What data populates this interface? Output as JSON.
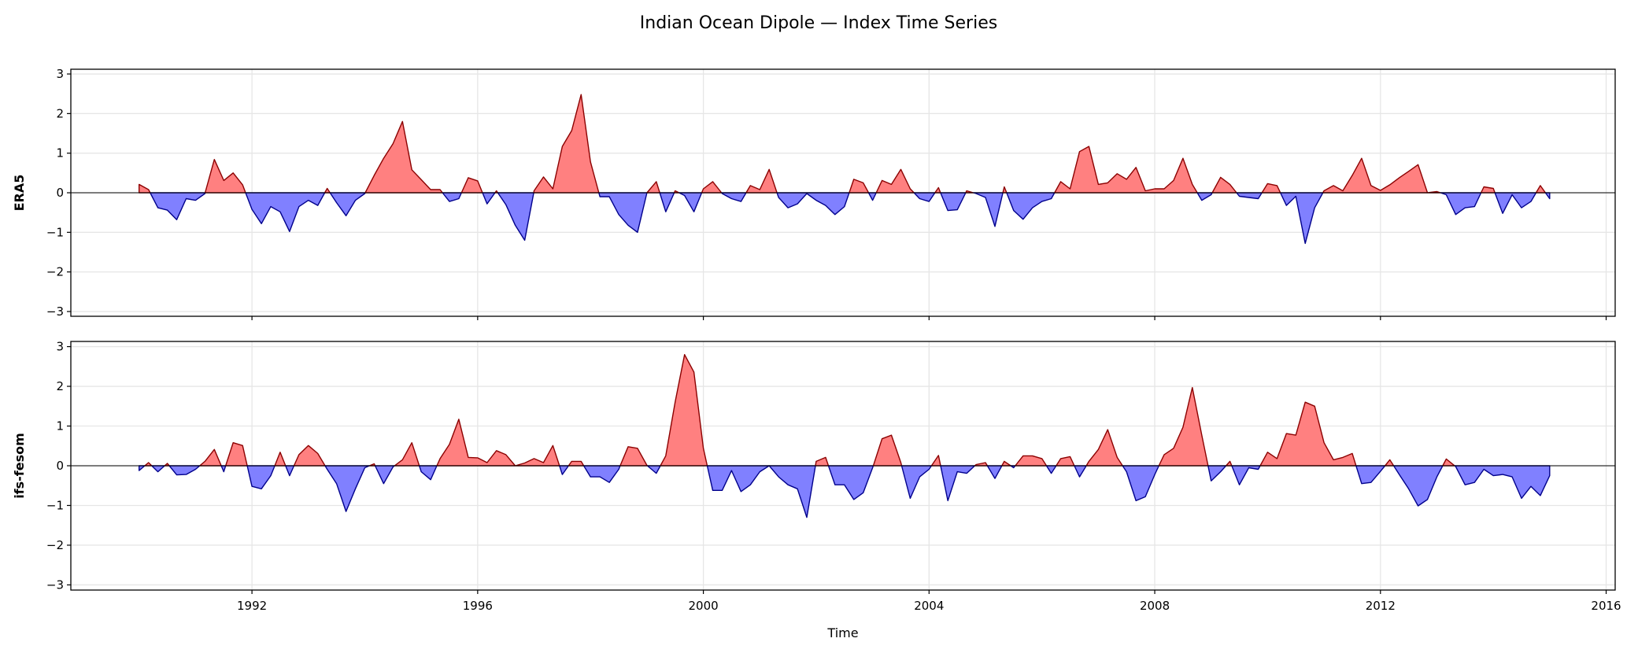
{
  "chart_data": {
    "type": "area",
    "title": "Indian Ocean Dipole — Index Time Series",
    "xlabel": "Time",
    "x_start": "1990-01",
    "x_step_months": 2,
    "xlim": [
      1988.79,
      2016.16
    ],
    "xticks": [
      "1992",
      "1996",
      "2000",
      "2004",
      "2008",
      "2012",
      "2016"
    ],
    "yticks": [
      "−3",
      "−2",
      "−1",
      "0",
      "1",
      "2",
      "3"
    ],
    "grid": true,
    "colors": {
      "positive_fill": "#ff8080",
      "positive_edge": "#8b0000",
      "negative_fill": "#8080ff",
      "negative_edge": "#00008b",
      "zero_line": "#000000"
    },
    "panels": [
      {
        "ylabel": "ERA5",
        "ylim": [
          -3.12,
          3.12
        ],
        "values": [
          0.21,
          0.08,
          -0.38,
          -0.44,
          -0.68,
          -0.15,
          -0.19,
          -0.02,
          0.84,
          0.31,
          0.5,
          0.2,
          -0.42,
          -0.78,
          -0.35,
          -0.48,
          -0.98,
          -0.35,
          -0.19,
          -0.32,
          0.11,
          -0.25,
          -0.58,
          -0.19,
          -0.02,
          0.44,
          0.87,
          1.24,
          1.8,
          0.58,
          0.33,
          0.08,
          0.08,
          -0.22,
          -0.15,
          0.38,
          0.3,
          -0.28,
          0.05,
          -0.3,
          -0.82,
          -1.2,
          0.05,
          0.4,
          0.1,
          1.17,
          1.57,
          2.48,
          0.78,
          -0.1,
          -0.1,
          -0.55,
          -0.82,
          -1.0,
          0.0,
          0.28,
          -0.48,
          0.05,
          -0.07,
          -0.48,
          0.1,
          0.28,
          -0.02,
          -0.15,
          -0.22,
          0.18,
          0.08,
          0.59,
          -0.12,
          -0.38,
          -0.28,
          -0.02,
          -0.19,
          -0.32,
          -0.55,
          -0.35,
          0.34,
          0.25,
          -0.19,
          0.31,
          0.21,
          0.59,
          0.1,
          -0.15,
          -0.22,
          0.13,
          -0.45,
          -0.43,
          0.05,
          -0.02,
          -0.12,
          -0.85,
          0.15,
          -0.45,
          -0.67,
          -0.38,
          -0.22,
          -0.15,
          0.28,
          0.1,
          1.04,
          1.17,
          0.21,
          0.25,
          0.48,
          0.34,
          0.64,
          0.05,
          0.1,
          0.1,
          0.31,
          0.87,
          0.21,
          -0.19,
          -0.05,
          0.39,
          0.21,
          -0.09,
          -0.12,
          -0.15,
          0.23,
          0.18,
          -0.32,
          -0.09,
          -1.28,
          -0.38,
          0.05,
          0.18,
          0.05,
          0.44,
          0.87,
          0.18,
          0.06,
          0.2,
          0.38,
          0.54,
          0.71,
          0.0,
          0.03,
          -0.05,
          -0.55,
          -0.38,
          -0.35,
          0.15,
          0.11,
          -0.52,
          -0.05,
          -0.38,
          -0.22,
          0.18,
          -0.15
        ]
      },
      {
        "ylabel": "ifs-fesom",
        "ylim": [
          -3.13,
          3.13
        ],
        "values": [
          -0.12,
          0.08,
          -0.15,
          0.06,
          -0.23,
          -0.22,
          -0.09,
          0.11,
          0.41,
          -0.15,
          0.58,
          0.51,
          -0.52,
          -0.58,
          -0.25,
          0.34,
          -0.25,
          0.28,
          0.51,
          0.31,
          -0.09,
          -0.45,
          -1.15,
          -0.58,
          -0.05,
          0.05,
          -0.45,
          -0.03,
          0.15,
          0.58,
          -0.15,
          -0.35,
          0.18,
          0.54,
          1.17,
          0.21,
          0.2,
          0.08,
          0.38,
          0.28,
          0.0,
          0.07,
          0.18,
          0.08,
          0.51,
          -0.22,
          0.11,
          0.11,
          -0.28,
          -0.28,
          -0.42,
          -0.09,
          0.48,
          0.44,
          0.01,
          -0.19,
          0.25,
          1.6,
          2.8,
          2.36,
          0.44,
          -0.62,
          -0.62,
          -0.12,
          -0.65,
          -0.48,
          -0.15,
          0.0,
          -0.28,
          -0.48,
          -0.58,
          -1.3,
          0.11,
          0.21,
          -0.48,
          -0.48,
          -0.85,
          -0.68,
          -0.05,
          0.68,
          0.77,
          0.08,
          -0.82,
          -0.28,
          -0.09,
          0.26,
          -0.88,
          -0.15,
          -0.19,
          0.03,
          0.08,
          -0.32,
          0.11,
          -0.05,
          0.25,
          0.25,
          0.18,
          -0.19,
          0.18,
          0.23,
          -0.28,
          0.11,
          0.41,
          0.91,
          0.21,
          -0.15,
          -0.88,
          -0.78,
          -0.22,
          0.28,
          0.44,
          0.97,
          1.97,
          0.77,
          -0.38,
          -0.15,
          0.11,
          -0.48,
          -0.05,
          -0.09,
          0.34,
          0.18,
          0.81,
          0.77,
          1.6,
          1.5,
          0.58,
          0.15,
          0.21,
          0.31,
          -0.45,
          -0.42,
          -0.14,
          0.15,
          -0.22,
          -0.58,
          -1.01,
          -0.85,
          -0.28,
          0.17,
          -0.02,
          -0.48,
          -0.42,
          -0.09,
          -0.25,
          -0.22,
          -0.28,
          -0.82,
          -0.52,
          -0.75,
          -0.25
        ]
      }
    ]
  }
}
